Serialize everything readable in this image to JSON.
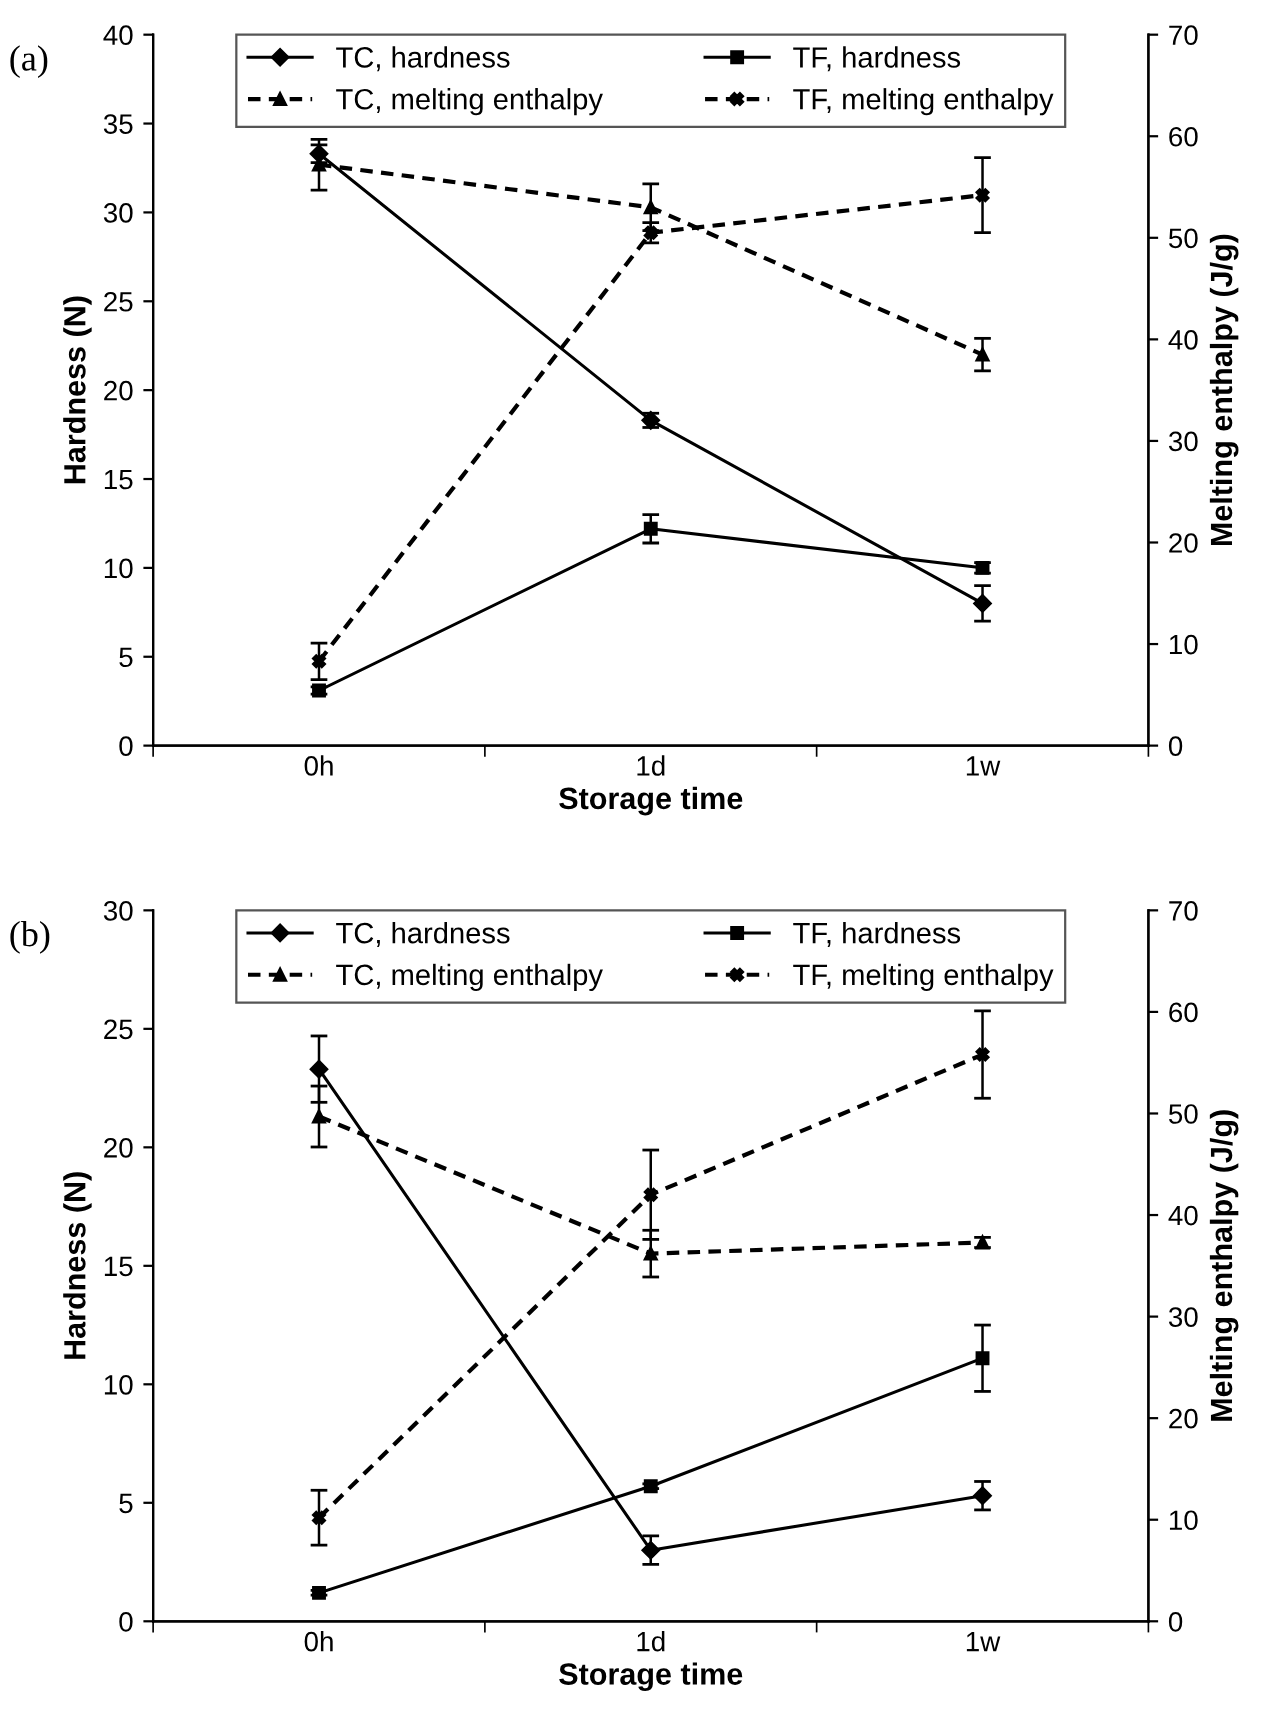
{
  "chart_data": [
    {
      "type": "line",
      "annotations": [
        "(a)"
      ],
      "xlabel": "Storage time",
      "ylabel": "Hardness (N)",
      "y2label": "Melting enthalpy (J/g)",
      "categories": [
        "0h",
        "1d",
        "1w"
      ],
      "ylim": [
        0,
        40
      ],
      "yticks": [
        0,
        5,
        10,
        15,
        20,
        25,
        30,
        35,
        40
      ],
      "y2lim": [
        0,
        70
      ],
      "y2ticks": [
        0,
        10,
        20,
        30,
        40,
        50,
        60,
        70
      ],
      "grid": false,
      "legend": "top",
      "series": [
        {
          "name": "TC, hardness",
          "color": "#000000",
          "marker": "diamond",
          "line_style": "solid",
          "values": [
            33.3,
            18.3,
            8.0
          ],
          "errors": [
            0.5,
            0.4,
            1.0
          ]
        },
        {
          "name": "TF, hardness",
          "color": "#000000",
          "marker": "square",
          "line_style": "solid",
          "values": [
            3.1,
            12.2,
            10.0
          ],
          "errors": [
            0.2,
            0.8,
            0.3
          ]
        },
        {
          "name": "TC, melting enthalpy",
          "color": "#000000",
          "marker": "triangle",
          "line_style": "dashed",
          "axis": "y2",
          "values": [
            57.2,
            53.0,
            38.5
          ],
          "errors": [
            2.5,
            2.3,
            1.6
          ]
        },
        {
          "name": "TF, melting enthalpy",
          "color": "#000000",
          "marker": "cross",
          "line_style": "dashed",
          "axis": "y2",
          "values": [
            8.3,
            50.5,
            54.2
          ],
          "errors": [
            1.8,
            1.0,
            3.7
          ]
        }
      ]
    },
    {
      "type": "line",
      "annotations": [
        "(b)"
      ],
      "xlabel": "Storage time",
      "ylabel": "Hardness (N)",
      "y2label": "Melting enthalpy (J/g)",
      "categories": [
        "0h",
        "1d",
        "1w"
      ],
      "ylim": [
        0,
        30
      ],
      "yticks": [
        0,
        5,
        10,
        15,
        20,
        25,
        30
      ],
      "y2lim": [
        0,
        70
      ],
      "y2ticks": [
        0,
        10,
        20,
        30,
        40,
        50,
        60,
        70
      ],
      "grid": false,
      "legend": "top",
      "series": [
        {
          "name": "TC, hardness",
          "color": "#000000",
          "marker": "diamond",
          "line_style": "solid",
          "values": [
            23.3,
            3.0,
            5.3
          ],
          "errors": [
            1.4,
            0.6,
            0.6
          ]
        },
        {
          "name": "TF, hardness",
          "color": "#000000",
          "marker": "square",
          "line_style": "solid",
          "values": [
            1.2,
            5.7,
            11.1
          ],
          "errors": [
            0.1,
            0.1,
            1.4
          ]
        },
        {
          "name": "TC, melting enthalpy",
          "color": "#000000",
          "marker": "triangle",
          "line_style": "dashed",
          "axis": "y2",
          "values": [
            49.7,
            36.2,
            37.3
          ],
          "errors": [
            3.0,
            2.3,
            0.5
          ]
        },
        {
          "name": "TF, melting enthalpy",
          "color": "#000000",
          "marker": "cross",
          "line_style": "dashed",
          "axis": "y2",
          "values": [
            10.2,
            42.0,
            55.8
          ],
          "errors": [
            2.7,
            4.4,
            4.3
          ]
        }
      ]
    }
  ]
}
